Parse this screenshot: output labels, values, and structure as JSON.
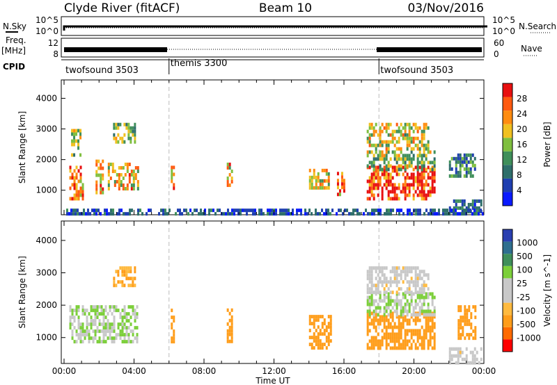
{
  "header": {
    "station": "Clyde River (fitACF)",
    "beam": "Beam 10",
    "date": "03/Nov/2016"
  },
  "status_panels": {
    "nsky": {
      "label": "N.Sky",
      "ticks": [
        "10^5",
        "10^0"
      ],
      "right_label": "N.Search",
      "right_ticks": [
        "10^5",
        "10^0"
      ]
    },
    "freq": {
      "label": "Freq.",
      "unit": "[MHz]",
      "ticks": [
        "12",
        "8"
      ],
      "right_label": "Nave",
      "right_ticks": [
        "60",
        "0"
      ]
    },
    "cpid": {
      "label": "CPID",
      "segments": [
        {
          "name": "twofsound 3503",
          "start_h": 0,
          "end_h": 6
        },
        {
          "name": "themis 3300",
          "start_h": 6,
          "end_h": 18
        },
        {
          "name": "twofsound 3503",
          "start_h": 18,
          "end_h": 24
        }
      ]
    }
  },
  "colors": {
    "power": [
      "#0a1aff",
      "#1f3fb0",
      "#2e6e6a",
      "#3f8f5a",
      "#7fbf3f",
      "#f0c020",
      "#ff8c10",
      "#ff5a10",
      "#e81010"
    ],
    "velocity": [
      "#ff0000",
      "#ff6a00",
      "#ff9d1a",
      "#ffba3f",
      "#c8c8c8",
      "#c8c8c8",
      "#7ccf3a",
      "#3f8f5a",
      "#2f6f8f",
      "#2a3fb0"
    ],
    "lines": "#000000",
    "divider": "#bbbbbb"
  },
  "chart_data": [
    {
      "type": "heatmap",
      "title": "",
      "xlabel": "Time UT",
      "ylabel": "Slant Range [km]",
      "xticks": [
        "00:00",
        "04:00",
        "08:00",
        "12:00",
        "16:00",
        "20:00",
        "00:00"
      ],
      "yticks": [
        "1000",
        "2000",
        "3000",
        "4000"
      ],
      "xlim": [
        0,
        24
      ],
      "ylim": [
        200,
        4600
      ],
      "colorbar": {
        "label": "Power [dB]",
        "ticks": [
          "4",
          "8",
          "12",
          "16",
          "20",
          "24",
          "28"
        ],
        "range": [
          0,
          30
        ]
      },
      "regions": [
        {
          "t0": 0.3,
          "t1": 1.1,
          "r0": 700,
          "r1": 1800,
          "v": 23
        },
        {
          "t0": 0.4,
          "t1": 0.9,
          "r0": 2100,
          "r1": 3000,
          "v": 14
        },
        {
          "t0": 1.8,
          "t1": 2.2,
          "r0": 900,
          "r1": 2000,
          "v": 22
        },
        {
          "t0": 2.5,
          "t1": 4.2,
          "r0": 1100,
          "r1": 1900,
          "v": 20
        },
        {
          "t0": 2.8,
          "t1": 4.0,
          "r0": 2600,
          "r1": 3200,
          "v": 15
        },
        {
          "t0": 6.1,
          "t1": 6.3,
          "r0": 1100,
          "r1": 1800,
          "v": 19
        },
        {
          "t0": 9.3,
          "t1": 9.6,
          "r0": 1000,
          "r1": 1900,
          "v": 20
        },
        {
          "t0": 14.0,
          "t1": 15.1,
          "r0": 1100,
          "r1": 1700,
          "v": 18
        },
        {
          "t0": 15.6,
          "t1": 16.0,
          "r0": 900,
          "r1": 1600,
          "v": 26
        },
        {
          "t0": 17.3,
          "t1": 21.2,
          "r0": 700,
          "r1": 1800,
          "v": 27
        },
        {
          "t0": 17.3,
          "t1": 21.2,
          "r0": 1700,
          "r1": 2300,
          "v": 15
        },
        {
          "t0": 17.3,
          "t1": 20.8,
          "r0": 2400,
          "r1": 3200,
          "v": 17
        },
        {
          "t0": 22.0,
          "t1": 23.5,
          "r0": 1500,
          "r1": 2200,
          "v": 10
        },
        {
          "t0": 22.0,
          "t1": 23.8,
          "r0": 300,
          "r1": 700,
          "v": 8
        },
        {
          "t0": 0.0,
          "t1": 24.0,
          "r0": 200,
          "r1": 400,
          "v": 6
        }
      ]
    },
    {
      "type": "heatmap",
      "title": "",
      "xlabel": "Time UT",
      "ylabel": "Slant Range [km]",
      "xticks": [
        "00:00",
        "04:00",
        "08:00",
        "12:00",
        "16:00",
        "20:00",
        "00:00"
      ],
      "yticks": [
        "1000",
        "2000",
        "3000",
        "4000"
      ],
      "xlim": [
        0,
        24
      ],
      "ylim": [
        200,
        4600
      ],
      "colorbar": {
        "label": "Velocity [m s^-1]",
        "ticks": [
          "1000",
          "500",
          "100",
          "25",
          "-25",
          "-100",
          "-500",
          "-1000"
        ],
        "range": [
          -1000,
          1000
        ]
      },
      "regions": [
        {
          "t0": 0.3,
          "t1": 4.2,
          "r0": 900,
          "r1": 2000,
          "v": 100
        },
        {
          "t0": 2.8,
          "t1": 4.0,
          "r0": 2600,
          "r1": 3200,
          "v": -100
        },
        {
          "t0": 6.1,
          "t1": 6.3,
          "r0": 900,
          "r1": 2000,
          "v": -300
        },
        {
          "t0": 9.3,
          "t1": 9.6,
          "r0": 900,
          "r1": 1900,
          "v": -400
        },
        {
          "t0": 14.0,
          "t1": 15.3,
          "r0": 700,
          "r1": 1700,
          "v": -300
        },
        {
          "t0": 17.3,
          "t1": 21.2,
          "r0": 700,
          "r1": 1800,
          "v": -150
        },
        {
          "t0": 17.3,
          "t1": 21.2,
          "r0": 1700,
          "r1": 2400,
          "v": 100
        },
        {
          "t0": 17.3,
          "t1": 20.8,
          "r0": 2400,
          "r1": 3200,
          "v": 0
        },
        {
          "t0": 22.0,
          "t1": 23.9,
          "r0": 200,
          "r1": 700,
          "v": 0
        },
        {
          "t0": 22.5,
          "t1": 23.5,
          "r0": 1000,
          "r1": 2000,
          "v": -200
        }
      ]
    }
  ]
}
